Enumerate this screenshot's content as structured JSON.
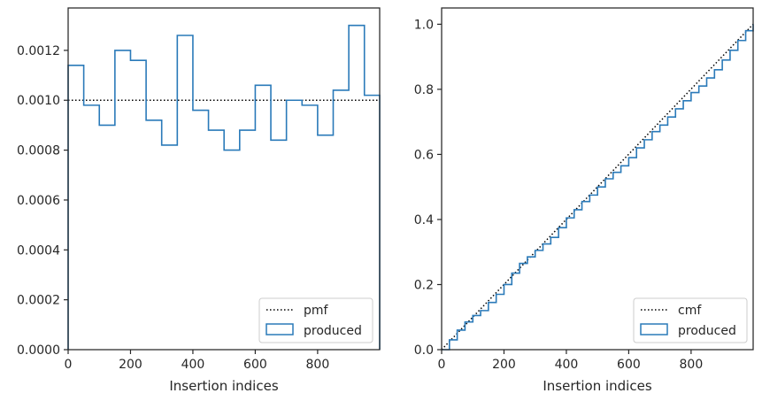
{
  "colors": {
    "produced": "#2a7ab9",
    "reference": "#000000",
    "axes": "#262626",
    "background": "#ffffff"
  },
  "chart_data": [
    {
      "type": "histogram",
      "xlabel": "Insertion indices",
      "ylabel": "",
      "xlim": [
        0,
        999
      ],
      "ylim": [
        0,
        0.00137
      ],
      "xticks": [
        "0",
        "200",
        "400",
        "600",
        "800"
      ],
      "yticks": [
        "0.0000",
        "0.0002",
        "0.0004",
        "0.0006",
        "0.0008",
        "0.0010",
        "0.0012"
      ],
      "grid": false,
      "legend_position": "lower-right",
      "reference_line": {
        "name": "pmf",
        "style": "dotted",
        "y": 0.001
      },
      "series": [
        {
          "name": "produced",
          "style": "step",
          "bin_edges": [
            0,
            50,
            100,
            150,
            200,
            250,
            300,
            350,
            400,
            450,
            500,
            550,
            600,
            650,
            700,
            750,
            800,
            850,
            900,
            950,
            999
          ],
          "values": [
            0.00114,
            0.00098,
            0.0009,
            0.0012,
            0.00116,
            0.00092,
            0.00082,
            0.00126,
            0.00096,
            0.00088,
            0.0008,
            0.00088,
            0.00106,
            0.00084,
            0.001,
            0.00098,
            0.00086,
            0.00104,
            0.0013,
            0.00102
          ]
        }
      ]
    },
    {
      "type": "line",
      "xlabel": "Insertion indices",
      "ylabel": "",
      "xlim": [
        0,
        999
      ],
      "ylim": [
        0,
        1.05
      ],
      "xticks": [
        "0",
        "200",
        "400",
        "600",
        "800"
      ],
      "yticks": [
        "0.0",
        "0.2",
        "0.4",
        "0.6",
        "0.8",
        "1.0"
      ],
      "grid": false,
      "legend_position": "lower-right",
      "reference_line": {
        "name": "cmf",
        "style": "dotted",
        "x": [
          0,
          999
        ],
        "y": [
          0,
          1.0
        ]
      },
      "series": [
        {
          "name": "produced",
          "style": "step",
          "x": [
            0,
            25,
            50,
            75,
            100,
            125,
            150,
            175,
            200,
            225,
            250,
            275,
            300,
            325,
            350,
            375,
            400,
            425,
            450,
            475,
            500,
            525,
            550,
            575,
            600,
            625,
            650,
            675,
            700,
            725,
            750,
            775,
            800,
            825,
            850,
            875,
            900,
            925,
            950,
            975,
            999
          ],
          "y": [
            0.0,
            0.03,
            0.06,
            0.085,
            0.105,
            0.12,
            0.145,
            0.17,
            0.2,
            0.235,
            0.265,
            0.285,
            0.305,
            0.325,
            0.345,
            0.375,
            0.405,
            0.43,
            0.455,
            0.475,
            0.5,
            0.525,
            0.545,
            0.565,
            0.59,
            0.62,
            0.645,
            0.67,
            0.69,
            0.715,
            0.74,
            0.765,
            0.79,
            0.81,
            0.835,
            0.86,
            0.89,
            0.92,
            0.95,
            0.98,
            1.0
          ]
        }
      ]
    }
  ]
}
